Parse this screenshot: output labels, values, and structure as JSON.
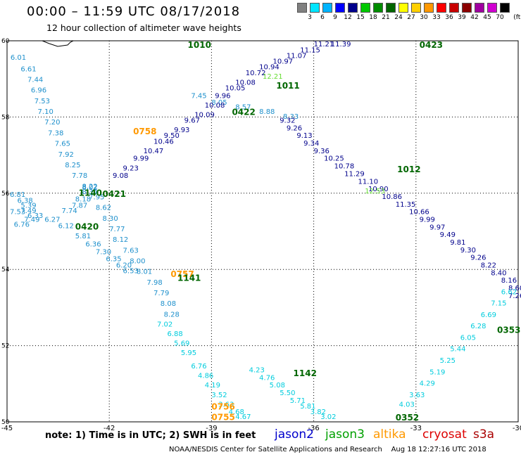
{
  "title": "00:00 – 11:59 UTC 08/17/2018",
  "subtitle": "12 hour collection of altimeter wave heights",
  "legend": {
    "unit": "(ft)",
    "colors": [
      "#808080",
      "#00e5ff",
      "#00b4ff",
      "#0000ff",
      "#00008b",
      "#00c800",
      "#008c00",
      "#006400",
      "#ffff00",
      "#ffd000",
      "#ff9800",
      "#ff0000",
      "#c80000",
      "#8b0000",
      "#a000a0",
      "#d000d0",
      "#000000"
    ],
    "labels": [
      "3",
      "6",
      "9",
      "12",
      "15",
      "18",
      "21",
      "24",
      "27",
      "30",
      "33",
      "36",
      "39",
      "42",
      "45",
      "70"
    ]
  },
  "note": "note: 1) Time is in UTC; 2) SWH is in feet",
  "satellites": [
    {
      "name": "jason2",
      "color": "#0000cc"
    },
    {
      "name": "jason3",
      "color": "#00a000"
    },
    {
      "name": "altika",
      "color": "#ff9900"
    },
    {
      "name": "cryosat",
      "color": "#dd0000"
    },
    {
      "name": "s3a",
      "color": "#aa0000"
    }
  ],
  "credit": "NOAA/NESDIS Center for Satellite Applications and Research    Aug 18 12:27:16 UTC 2018",
  "chart_data": {
    "type": "scatter",
    "xlim": [
      -45,
      -30
    ],
    "ylim": [
      50,
      60
    ],
    "xticks": [
      "-45",
      "-42",
      "-39",
      "-36",
      "-33",
      "-30"
    ],
    "yticks": [
      "50",
      "52",
      "54",
      "56",
      "58",
      "60"
    ],
    "grid": true,
    "time_labels": [
      {
        "lon": -42.9,
        "lat": 55.93,
        "text": "1140",
        "color": "#006600"
      },
      {
        "lon": -42.2,
        "lat": 55.9,
        "text": "0421",
        "color": "#006600"
      },
      {
        "lon": -43.0,
        "lat": 55.05,
        "text": "0420",
        "color": "#006600"
      },
      {
        "lon": -39.7,
        "lat": 59.9,
        "text": "1010",
        "color": "#006600"
      },
      {
        "lon": -32.9,
        "lat": 59.95,
        "text": "0423",
        "color": "#006600"
      },
      {
        "lon": -37.1,
        "lat": 58.75,
        "text": "1011",
        "color": "#006600"
      },
      {
        "lon": -38.4,
        "lat": 58.05,
        "text": "0422",
        "color": "#006600"
      },
      {
        "lon": -33.55,
        "lat": 56.55,
        "text": "1012",
        "color": "#006600"
      },
      {
        "lon": -41.3,
        "lat": 57.55,
        "text": "0758",
        "color": "#ff9900"
      },
      {
        "lon": -40.2,
        "lat": 53.8,
        "text": "0757",
        "color": "#ff9900"
      },
      {
        "lon": -40.0,
        "lat": 53.7,
        "text": "1141",
        "color": "#006600"
      },
      {
        "lon": -36.6,
        "lat": 51.2,
        "text": "1142",
        "color": "#006600"
      },
      {
        "lon": -39.0,
        "lat": 50.32,
        "text": "0756",
        "color": "#ff9900"
      },
      {
        "lon": -39.0,
        "lat": 50.05,
        "text": "0755",
        "color": "#ff9900"
      },
      {
        "lon": -33.6,
        "lat": 50.0,
        "text": "0352",
        "color": "#006600"
      },
      {
        "lon": -30.3,
        "lat": 52.33,
        "text": "0353",
        "color": "#006600"
      }
    ],
    "series": [
      {
        "name": "jason3",
        "color": "#1e90cc",
        "points": [
          [
            -44.9,
            59.5,
            "6.01"
          ],
          [
            -44.6,
            59.2,
            "6.61"
          ],
          [
            -44.4,
            58.92,
            "7.44"
          ],
          [
            -44.3,
            58.64,
            "6.96"
          ],
          [
            -44.2,
            58.36,
            "7.53"
          ],
          [
            -44.1,
            58.08,
            "7.10"
          ],
          [
            -43.9,
            57.8,
            "7.20"
          ],
          [
            -43.8,
            57.52,
            "7.38"
          ],
          [
            -43.6,
            57.24,
            "7.65"
          ],
          [
            -43.5,
            56.96,
            "7.92"
          ],
          [
            -43.3,
            56.68,
            "8.25"
          ],
          [
            -43.1,
            56.4,
            "7.78"
          ],
          [
            -42.8,
            56.12,
            "8.22"
          ],
          [
            -42.6,
            55.84,
            "7.95"
          ],
          [
            -42.4,
            55.56,
            "8.62"
          ],
          [
            -42.2,
            55.28,
            "8.30"
          ],
          [
            -42.0,
            55.0,
            "7.77"
          ],
          [
            -41.9,
            54.72,
            "8.12"
          ],
          [
            -41.6,
            54.44,
            "7.63"
          ],
          [
            -41.4,
            54.16,
            "8.00"
          ],
          [
            -41.2,
            53.88,
            "8.01"
          ],
          [
            -40.9,
            53.6,
            "7.98"
          ],
          [
            -40.7,
            53.32,
            "7.79"
          ],
          [
            -40.5,
            53.04,
            "8.08"
          ],
          [
            -40.4,
            52.76,
            "8.28"
          ]
        ]
      },
      {
        "name": "jason3",
        "color": "#1e90cc",
        "points": [
          [
            -45.0,
            55.9,
            "6.81"
          ],
          [
            -44.7,
            55.75,
            "6.38"
          ],
          [
            -44.6,
            55.62,
            "5.39"
          ],
          [
            -44.6,
            55.48,
            "7.49"
          ],
          [
            -44.4,
            55.35,
            "6.33"
          ],
          [
            -43.9,
            55.25,
            "6.27"
          ],
          [
            -43.5,
            55.08,
            "6.12"
          ],
          [
            -43.0,
            54.82,
            "5.81"
          ],
          [
            -42.7,
            54.6,
            "6.36"
          ],
          [
            -42.4,
            54.4,
            "7.30"
          ],
          [
            -42.1,
            54.22,
            "6.35"
          ],
          [
            -41.8,
            54.05,
            "6.20"
          ],
          [
            -41.6,
            53.9,
            "6.53"
          ]
        ]
      },
      {
        "name": "jason3",
        "color": "#1e90cc",
        "points": [
          [
            -45.0,
            55.45,
            "7.53"
          ],
          [
            -44.8,
            55.12,
            "6.76"
          ],
          [
            -44.5,
            55.25,
            "7.49"
          ],
          [
            -43.4,
            55.48,
            "7.74"
          ],
          [
            -43.1,
            55.62,
            "7.87"
          ],
          [
            -43.0,
            55.78,
            "8.18"
          ],
          [
            -42.8,
            55.98,
            "8.34"
          ],
          [
            -42.8,
            56.1,
            "8.02"
          ]
        ]
      },
      {
        "name": "jason2",
        "color": "#1e90cc",
        "points": [
          [
            -39.6,
            58.5,
            "7.45"
          ],
          [
            -39.0,
            58.32,
            "8.05"
          ],
          [
            -38.3,
            58.2,
            "8.57"
          ],
          [
            -37.6,
            58.08,
            "8.88"
          ],
          [
            -36.9,
            57.95,
            "8.33"
          ]
        ]
      },
      {
        "name": "jason2",
        "color": "#00008b",
        "points": [
          [
            -41.9,
            56.4,
            "9.08"
          ],
          [
            -41.6,
            56.6,
            "9.23"
          ],
          [
            -41.3,
            56.85,
            "9.99"
          ],
          [
            -41.0,
            57.05,
            "10.47"
          ],
          [
            -40.7,
            57.3,
            "10.46"
          ],
          [
            -40.4,
            57.45,
            "9.50"
          ],
          [
            -40.1,
            57.6,
            "9.93"
          ],
          [
            -39.8,
            57.85,
            "9.67"
          ],
          [
            -39.5,
            58.0,
            "10.09"
          ],
          [
            -39.2,
            58.25,
            "10.08"
          ],
          [
            -38.9,
            58.5,
            "9.96"
          ],
          [
            -38.6,
            58.7,
            "10.05"
          ],
          [
            -38.3,
            58.85,
            "10.08"
          ],
          [
            -38.0,
            59.1,
            "10.72"
          ],
          [
            -37.6,
            59.25,
            "10.94"
          ],
          [
            -37.2,
            59.4,
            "10.97"
          ],
          [
            -36.8,
            59.55,
            "11.07"
          ],
          [
            -36.4,
            59.7,
            "11.15"
          ],
          [
            -36.0,
            59.85,
            "11.21"
          ],
          [
            -35.5,
            60.0,
            "11.39"
          ]
        ]
      },
      {
        "name": "jason2",
        "color": "#00008b",
        "points": [
          [
            -37.0,
            57.85,
            "9.32"
          ],
          [
            -36.8,
            57.65,
            "9.26"
          ],
          [
            -36.5,
            57.45,
            "9.13"
          ],
          [
            -36.3,
            57.25,
            "9.34"
          ],
          [
            -36.0,
            57.05,
            "9.36"
          ],
          [
            -35.7,
            56.85,
            "10.25"
          ],
          [
            -35.4,
            56.65,
            "10.78"
          ],
          [
            -35.1,
            56.45,
            "11.29"
          ],
          [
            -34.7,
            56.25,
            "11.10"
          ],
          [
            -34.4,
            56.05,
            "10.90"
          ],
          [
            -34.0,
            55.85,
            "10.86"
          ],
          [
            -33.6,
            55.65,
            "11.35"
          ],
          [
            -33.2,
            55.45,
            "10.66"
          ],
          [
            -32.9,
            55.25,
            "9.99"
          ],
          [
            -32.6,
            55.05,
            "9.97"
          ],
          [
            -32.3,
            54.85,
            "9.49"
          ],
          [
            -32.0,
            54.65,
            "9.81"
          ],
          [
            -31.7,
            54.45,
            "9.30"
          ],
          [
            -31.4,
            54.25,
            "9.26"
          ],
          [
            -31.1,
            54.05,
            "8.22"
          ],
          [
            -30.8,
            53.85,
            "8.40"
          ],
          [
            -30.5,
            53.65,
            "8.16"
          ],
          [
            -30.2,
            53.45,
            "8.60"
          ],
          [
            -30.0,
            53.25,
            "7.26"
          ]
        ]
      },
      {
        "name": "jason3-green",
        "color": "#66dd33",
        "points": [
          [
            -37.5,
            59.0,
            "12.21"
          ],
          [
            -34.5,
            56.0,
            "12.53"
          ]
        ]
      },
      {
        "name": "altika",
        "color": "#00ccdd",
        "points": [
          [
            -40.6,
            52.5,
            "7.02"
          ],
          [
            -40.3,
            52.25,
            "6.88"
          ],
          [
            -40.1,
            52.0,
            "5.69"
          ],
          [
            -39.9,
            51.75,
            "5.95"
          ],
          [
            -39.6,
            51.4,
            "6.76"
          ],
          [
            -39.4,
            51.15,
            "4.86"
          ],
          [
            -39.2,
            50.9,
            "4.19"
          ],
          [
            -39.0,
            50.65,
            "3.52"
          ],
          [
            -38.8,
            50.4,
            "3.63"
          ],
          [
            -38.5,
            50.2,
            "4.68"
          ],
          [
            -38.3,
            50.05,
            "4.67"
          ],
          [
            -37.9,
            51.3,
            "4.23"
          ],
          [
            -37.6,
            51.1,
            "4.76"
          ],
          [
            -37.3,
            50.9,
            "5.08"
          ],
          [
            -37.0,
            50.7,
            "5.50"
          ],
          [
            -36.7,
            50.5,
            "5.71"
          ],
          [
            -36.4,
            50.35,
            "5.81"
          ],
          [
            -36.1,
            50.2,
            "3.82"
          ],
          [
            -35.8,
            50.05,
            "3.02"
          ],
          [
            -33.5,
            50.4,
            "4.03"
          ],
          [
            -33.2,
            50.65,
            "3.63"
          ],
          [
            -32.9,
            50.95,
            "4.29"
          ],
          [
            -32.6,
            51.25,
            "5.19"
          ],
          [
            -32.3,
            51.55,
            "5.25"
          ],
          [
            -32.0,
            51.85,
            "5.44"
          ],
          [
            -31.7,
            52.15,
            "6.05"
          ],
          [
            -31.4,
            52.45,
            "6.28"
          ],
          [
            -31.1,
            52.75,
            "6.69"
          ],
          [
            -30.8,
            53.05,
            "7.15"
          ],
          [
            -30.5,
            53.35,
            "6.62"
          ]
        ]
      }
    ]
  }
}
